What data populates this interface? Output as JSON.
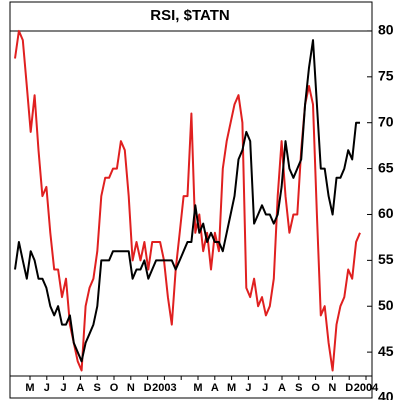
{
  "chart_data": {
    "type": "line",
    "title": "RSI, $TATN",
    "month_labels": [
      "M",
      "J",
      "J",
      "A",
      "S",
      "O",
      "N",
      "D",
      "2003",
      null,
      "M",
      "A",
      "M",
      "J",
      "J",
      "A",
      "S",
      "O",
      "N",
      "D",
      "2004"
    ],
    "ylim": [
      40,
      82.5
    ],
    "yticks": [
      40,
      45,
      50,
      55,
      60,
      65,
      70,
      75,
      80
    ],
    "hline": 80,
    "series": [
      {
        "color": "#e02020",
        "values": [
          77,
          80,
          79,
          74,
          69,
          73,
          67,
          62,
          63,
          58,
          54,
          54,
          51,
          53,
          48,
          46,
          44,
          43,
          50,
          52,
          53,
          56,
          62,
          64,
          64,
          65,
          65,
          68,
          67,
          62,
          55,
          57,
          55,
          57,
          54,
          57,
          57,
          57,
          55,
          51,
          48,
          54,
          58,
          62,
          62,
          71,
          58,
          60,
          56,
          58,
          54,
          58,
          56,
          65,
          68,
          70,
          72,
          73,
          70,
          52,
          51,
          53,
          50,
          51,
          49,
          50,
          53,
          62,
          68,
          62,
          58,
          60,
          60,
          67,
          72,
          74,
          72,
          60,
          49,
          50,
          46,
          43,
          48,
          50,
          51,
          54,
          53,
          57,
          58
        ]
      },
      {
        "color": "#000000",
        "values": [
          54,
          57,
          55,
          53,
          56,
          55,
          53,
          53,
          52,
          50,
          49,
          50,
          48,
          48,
          49,
          46,
          45,
          44,
          46,
          47,
          48,
          50,
          55,
          55,
          55,
          56,
          56,
          56,
          56,
          56,
          53,
          54,
          54,
          55,
          53,
          54,
          55,
          55,
          55,
          55,
          55,
          54,
          55,
          56,
          57,
          57,
          61,
          58,
          59,
          57,
          58,
          57,
          57,
          56,
          58,
          60,
          62,
          66,
          67,
          69,
          68,
          59,
          60,
          61,
          60,
          60,
          59,
          60,
          63,
          68,
          65,
          64,
          65,
          66,
          72,
          76,
          79,
          72,
          65,
          65,
          62,
          60,
          64,
          64,
          65,
          67,
          66,
          70,
          70
        ]
      }
    ]
  }
}
